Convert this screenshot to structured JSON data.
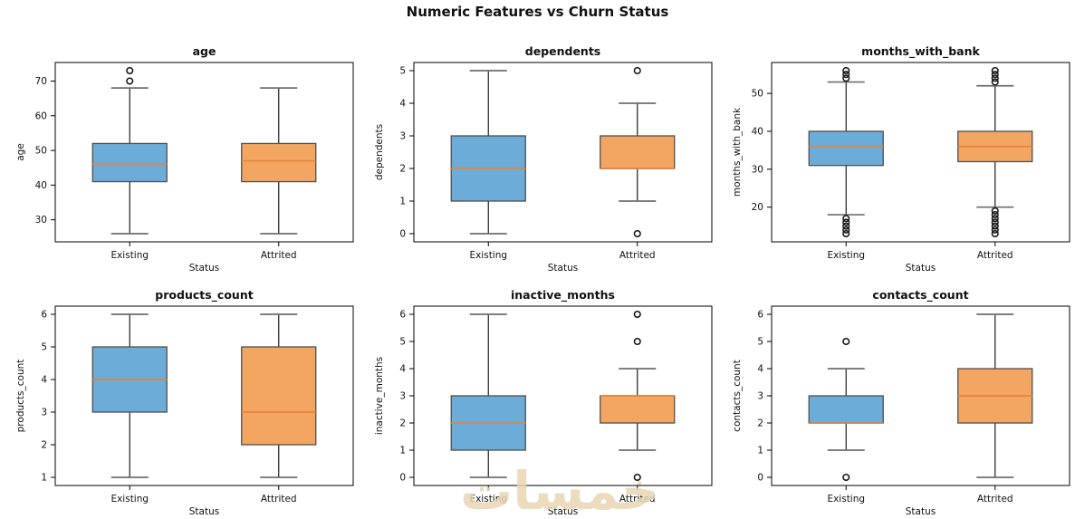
{
  "figure_title": "Numeric Features vs Churn Status",
  "watermark": "خمسات",
  "colors": {
    "existing_fill": "#6bacd8",
    "attrited_fill": "#f2a661",
    "median": "#e8823c",
    "box_edge": "#4f4f4f",
    "whisker": "#1f1f1f",
    "cap": "#6e6e6e",
    "spine": "#000000",
    "outlier_edge": "#111111",
    "text": "#111111"
  },
  "chart_data": [
    {
      "type": "boxplot",
      "title": "age",
      "xlabel": "Status",
      "ylabel": "age",
      "categories": [
        "Existing",
        "Attrited"
      ],
      "ylim": [
        23.65,
        75.35
      ],
      "yticks": [
        30,
        40,
        50,
        60,
        70
      ],
      "series": [
        {
          "name": "Existing",
          "whisker_low": 26,
          "q1": 41,
          "median": 46,
          "q3": 52,
          "whisker_high": 68,
          "outliers": [
            70,
            73
          ]
        },
        {
          "name": "Attrited",
          "whisker_low": 26,
          "q1": 41,
          "median": 47,
          "q3": 52,
          "whisker_high": 68,
          "outliers": []
        }
      ]
    },
    {
      "type": "boxplot",
      "title": "dependents",
      "xlabel": "Status",
      "ylabel": "dependents",
      "categories": [
        "Existing",
        "Attrited"
      ],
      "ylim": [
        -0.25,
        5.25
      ],
      "yticks": [
        0,
        1,
        2,
        3,
        4,
        5
      ],
      "series": [
        {
          "name": "Existing",
          "whisker_low": 0,
          "q1": 1,
          "median": 2,
          "q3": 3,
          "whisker_high": 5,
          "outliers": []
        },
        {
          "name": "Attrited",
          "whisker_low": 1,
          "q1": 2,
          "median": 2,
          "q3": 3,
          "whisker_high": 4,
          "outliers": [
            0,
            5
          ]
        }
      ]
    },
    {
      "type": "boxplot",
      "title": "months_with_bank",
      "xlabel": "Status",
      "ylabel": "months_with_bank",
      "categories": [
        "Existing",
        "Attrited"
      ],
      "ylim": [
        10.85,
        58.15
      ],
      "yticks": [
        20,
        30,
        40,
        50
      ],
      "series": [
        {
          "name": "Existing",
          "whisker_low": 18,
          "q1": 31,
          "median": 36,
          "q3": 40,
          "whisker_high": 53,
          "outliers": [
            54,
            55,
            56,
            17,
            16,
            15,
            14,
            13
          ]
        },
        {
          "name": "Attrited",
          "whisker_low": 20,
          "q1": 32,
          "median": 36,
          "q3": 40,
          "whisker_high": 52,
          "outliers": [
            53,
            54,
            55,
            56,
            19,
            18,
            17,
            16,
            15,
            14,
            13
          ]
        }
      ]
    },
    {
      "type": "boxplot",
      "title": "products_count",
      "xlabel": "Status",
      "ylabel": "products_count",
      "categories": [
        "Existing",
        "Attrited"
      ],
      "ylim": [
        0.75,
        6.25
      ],
      "yticks": [
        1,
        2,
        3,
        4,
        5,
        6
      ],
      "series": [
        {
          "name": "Existing",
          "whisker_low": 1,
          "q1": 3,
          "median": 4,
          "q3": 5,
          "whisker_high": 6,
          "outliers": []
        },
        {
          "name": "Attrited",
          "whisker_low": 1,
          "q1": 2,
          "median": 3,
          "q3": 5,
          "whisker_high": 6,
          "outliers": []
        }
      ]
    },
    {
      "type": "boxplot",
      "title": "inactive_months",
      "xlabel": "Status",
      "ylabel": "inactive_months",
      "categories": [
        "Existing",
        "Attrited"
      ],
      "ylim": [
        -0.3,
        6.3
      ],
      "yticks": [
        0,
        1,
        2,
        3,
        4,
        5,
        6
      ],
      "series": [
        {
          "name": "Existing",
          "whisker_low": 0,
          "q1": 1,
          "median": 2,
          "q3": 3,
          "whisker_high": 6,
          "outliers": []
        },
        {
          "name": "Attrited",
          "whisker_low": 1,
          "q1": 2,
          "median": 3,
          "q3": 3,
          "whisker_high": 4,
          "outliers": [
            0,
            5,
            6
          ]
        }
      ]
    },
    {
      "type": "boxplot",
      "title": "contacts_count",
      "xlabel": "Status",
      "ylabel": "contacts_count",
      "categories": [
        "Existing",
        "Attrited"
      ],
      "ylim": [
        -0.3,
        6.3
      ],
      "yticks": [
        0,
        1,
        2,
        3,
        4,
        5,
        6
      ],
      "series": [
        {
          "name": "Existing",
          "whisker_low": 1,
          "q1": 2,
          "median": 2,
          "q3": 3,
          "whisker_high": 4,
          "outliers": [
            0,
            5
          ]
        },
        {
          "name": "Attrited",
          "whisker_low": 0,
          "q1": 2,
          "median": 3,
          "q3": 4,
          "whisker_high": 6,
          "outliers": []
        }
      ]
    }
  ]
}
